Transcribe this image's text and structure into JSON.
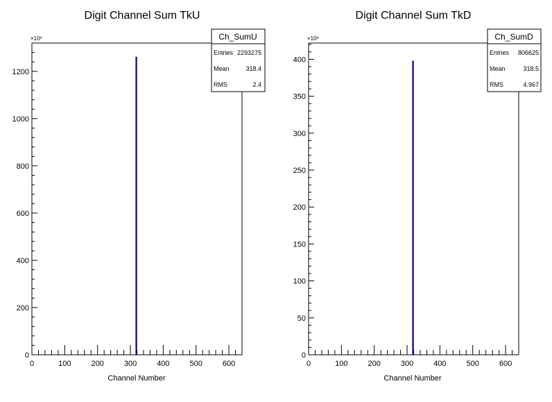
{
  "chart_data": [
    {
      "type": "bar",
      "title": "Digit Channel Sum TkU",
      "xlabel": "Channel Number",
      "ylabel": "",
      "y_multiplier": "×10³",
      "xlim": [
        0,
        640
      ],
      "ylim": [
        0,
        1320
      ],
      "x_ticks": [
        0,
        100,
        200,
        300,
        400,
        500,
        600
      ],
      "y_ticks": [
        0,
        200,
        400,
        600,
        800,
        1000,
        1200
      ],
      "series": [
        {
          "x": [
            318
          ],
          "values": [
            1262
          ]
        }
      ],
      "stats_box": {
        "name": "Ch_SumU",
        "rows": [
          {
            "label": "Entries",
            "value": "2293275"
          },
          {
            "label": "Mean",
            "value": "318.4"
          },
          {
            "label": "RMS",
            "value": "2.4"
          }
        ]
      },
      "line_color": "#000080"
    },
    {
      "type": "bar",
      "title": "Digit Channel Sum TkD",
      "xlabel": "Channel Number",
      "ylabel": "",
      "y_multiplier": "×10³",
      "xlim": [
        0,
        640
      ],
      "ylim": [
        0,
        422
      ],
      "x_ticks": [
        0,
        100,
        200,
        300,
        400,
        500,
        600
      ],
      "y_ticks": [
        0,
        50,
        100,
        150,
        200,
        250,
        300,
        350,
        400
      ],
      "series": [
        {
          "x": [
            318
          ],
          "values": [
            398
          ]
        }
      ],
      "stats_box": {
        "name": "Ch_SumD",
        "rows": [
          {
            "label": "Entries",
            "value": "806625"
          },
          {
            "label": "Mean",
            "value": "318.5"
          },
          {
            "label": "RMS",
            "value": "4.967"
          }
        ]
      },
      "line_color": "#000080"
    }
  ]
}
